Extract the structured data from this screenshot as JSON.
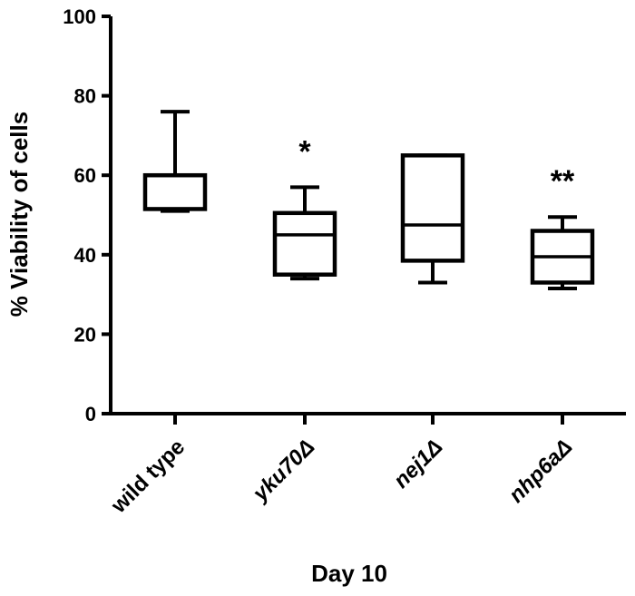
{
  "chart_data": {
    "type": "box",
    "ylabel": "% Viability of cells",
    "xlabel": "Day 10",
    "ylim": [
      0,
      100
    ],
    "yticks": [
      0,
      20,
      40,
      60,
      80,
      100
    ],
    "categories": [
      "wild type",
      "yku70Δ",
      "nej1Δ",
      "nhp6aΔ"
    ],
    "italic_categories": [
      false,
      true,
      true,
      true
    ],
    "boxes": [
      {
        "category": "wild type",
        "min": 51,
        "q1": 51.5,
        "median": 51.5,
        "q3": 60,
        "max": 76,
        "annotation": ""
      },
      {
        "category": "yku70Δ",
        "min": 34,
        "q1": 35,
        "median": 45,
        "q3": 50.5,
        "max": 57,
        "annotation": "*"
      },
      {
        "category": "nej1Δ",
        "min": 33,
        "q1": 38.5,
        "median": 47.5,
        "q3": 65,
        "max": 65,
        "annotation": ""
      },
      {
        "category": "nhp6aΔ",
        "min": 31.5,
        "q1": 33,
        "median": 39.5,
        "q3": 46,
        "max": 49.5,
        "annotation": "**"
      }
    ],
    "grid": false,
    "legend": "none"
  }
}
